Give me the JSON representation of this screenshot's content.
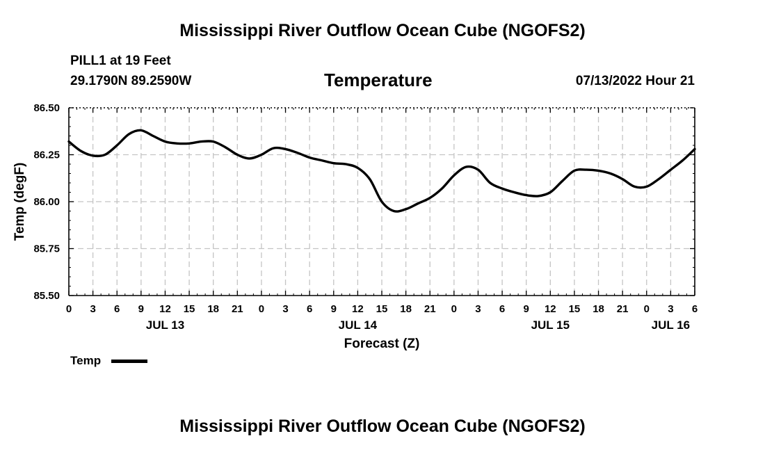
{
  "title": "Mississippi River Outflow Ocean Cube (NGOFS2)",
  "footer_title": "Mississippi River Outflow Ocean Cube (NGOFS2)",
  "station": "PILL1 at 19 Feet",
  "coords": "29.1790N  89.2590W",
  "parameter": "Temperature",
  "datetime": "07/13/2022 Hour 21",
  "chart_data": {
    "type": "line",
    "title": "Temperature",
    "xlabel": "Forecast (Z)",
    "ylabel": "Temp (degF)",
    "ylim": [
      85.5,
      86.5
    ],
    "xlim": [
      0,
      78
    ],
    "yticks": [
      "85.50",
      "85.75",
      "86.00",
      "86.25",
      "86.50"
    ],
    "xticks": [
      "0",
      "3",
      "6",
      "9",
      "12",
      "15",
      "18",
      "21",
      "0",
      "3",
      "6",
      "9",
      "12",
      "15",
      "18",
      "21",
      "0",
      "3",
      "6",
      "9",
      "12",
      "15",
      "18",
      "21",
      "0",
      "3",
      "6"
    ],
    "day_labels": [
      {
        "label": "JUL 13",
        "hour": 12
      },
      {
        "label": "JUL 14",
        "hour": 36
      },
      {
        "label": "JUL 15",
        "hour": 60
      },
      {
        "label": "JUL 16",
        "hour": 75
      }
    ],
    "grid": true,
    "series": [
      {
        "name": "Temp",
        "x": [
          0,
          1.5,
          3,
          4.5,
          6,
          7.5,
          9,
          10.5,
          12,
          13.5,
          15,
          16.5,
          18,
          19.5,
          21,
          22.5,
          24,
          25.5,
          27,
          28.5,
          30,
          31.5,
          33,
          34.5,
          36,
          37.5,
          39,
          40.5,
          42,
          43.5,
          45,
          46.5,
          48,
          49.5,
          51,
          52.5,
          54,
          55.5,
          57,
          58.5,
          60,
          61.5,
          63,
          64.5,
          66,
          67.5,
          69,
          70.5,
          72,
          73.5,
          75,
          76.5,
          78
        ],
        "values": [
          86.32,
          86.27,
          86.245,
          86.25,
          86.3,
          86.36,
          86.38,
          86.35,
          86.32,
          86.31,
          86.31,
          86.32,
          86.32,
          86.29,
          86.25,
          86.23,
          86.25,
          86.285,
          86.28,
          86.26,
          86.235,
          86.22,
          86.205,
          86.2,
          86.18,
          86.12,
          86.0,
          85.95,
          85.96,
          85.99,
          86.02,
          86.07,
          86.14,
          86.185,
          86.17,
          86.1,
          86.07,
          86.05,
          86.035,
          86.03,
          86.05,
          86.11,
          86.165,
          86.17,
          86.165,
          86.15,
          86.12,
          86.08,
          86.08,
          86.12,
          86.17,
          86.22,
          86.28
        ]
      }
    ],
    "legend": {
      "label": "Temp",
      "position": "bottom-left"
    }
  }
}
